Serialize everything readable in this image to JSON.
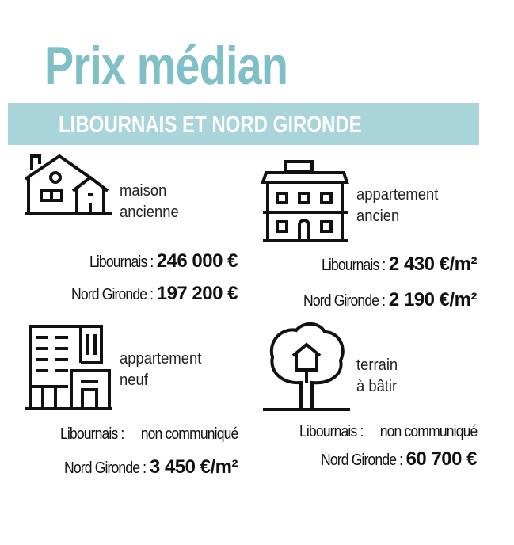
{
  "title": "Prix médian",
  "subtitle": "LIBOURNAIS ET NORD GIRONDE",
  "colors": {
    "title": "#7fbfc6",
    "band": "#a9d4d9"
  },
  "cards": [
    {
      "icon": "house-icon",
      "label_lines": [
        "maison",
        "ancienne"
      ],
      "stats": [
        {
          "key": "Libournais :",
          "value": "246 000 €"
        },
        {
          "key": "Nord Gironde :",
          "value": "197 200 €"
        }
      ]
    },
    {
      "icon": "apartment-building-icon",
      "label_lines": [
        "appartement",
        "ancien"
      ],
      "stats": [
        {
          "key": "Libournais :",
          "value": "2 430 €/m²"
        },
        {
          "key": "Nord Gironde :",
          "value": "2 190 €/m²"
        }
      ]
    },
    {
      "icon": "tower-building-icon",
      "label_lines": [
        "appartement",
        "neuf"
      ],
      "stats": [
        {
          "key": "Libournais :",
          "value": "non communiqué"
        },
        {
          "key": "Nord Gironde :",
          "value": "3 450 €/m²"
        }
      ]
    },
    {
      "icon": "tree-house-icon",
      "label_lines": [
        "terrain",
        "à bâtir"
      ],
      "stats": [
        {
          "key": "Libournais :",
          "value": "non communiqué"
        },
        {
          "key": "Nord Gironde :",
          "value": "60 700 €"
        }
      ]
    }
  ]
}
